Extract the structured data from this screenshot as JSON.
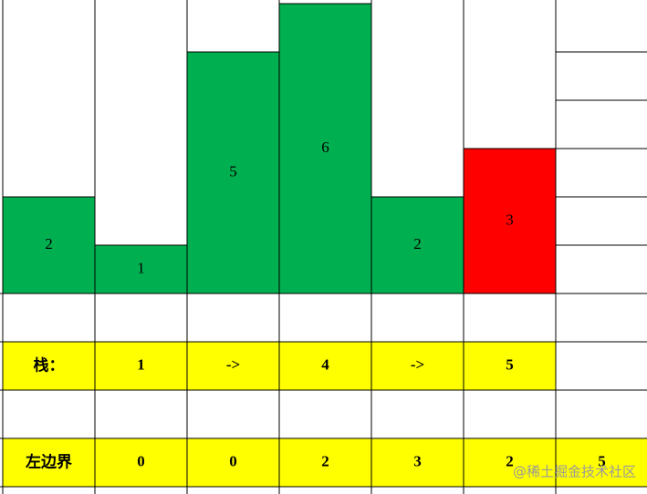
{
  "bars": {
    "values": [
      2,
      1,
      5,
      6,
      2,
      3
    ],
    "colors": [
      "#00b050",
      "#00b050",
      "#00b050",
      "#00b050",
      "#00b050",
      "#ff0000"
    ]
  },
  "stack": {
    "label": "栈：",
    "cells": [
      "1",
      "->",
      "4",
      "->",
      "5"
    ]
  },
  "left_boundary": {
    "label": "左边界",
    "cells": [
      "0",
      "0",
      "2",
      "3",
      "2",
      "5"
    ]
  },
  "watermark": "@稀土掘金技术社区"
}
